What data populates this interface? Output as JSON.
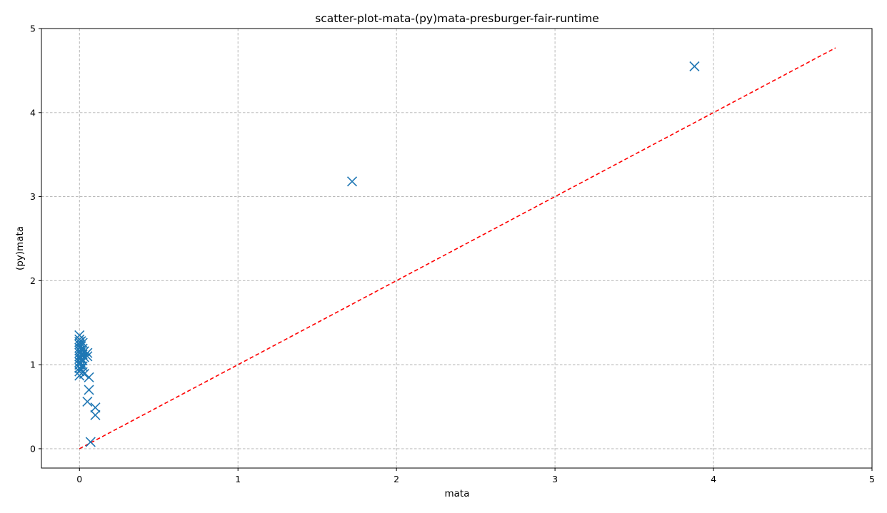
{
  "chart_data": {
    "type": "scatter",
    "title": "scatter-plot-mata-(py)mata-presburger-fair-runtime",
    "xlabel": "mata",
    "ylabel": "(py)mata",
    "xlim": [
      -0.24,
      5.0
    ],
    "ylim": [
      -0.23,
      5.0
    ],
    "xticks": [
      0,
      1,
      2,
      3,
      4,
      5
    ],
    "yticks": [
      0,
      1,
      2,
      3,
      4,
      5
    ],
    "grid": true,
    "marker": "x",
    "colors": {
      "points": "#1f77b4",
      "diagonal": "#ff0000"
    },
    "series": [
      {
        "values": [
          {
            "x": 0.0,
            "y": 1.35
          },
          {
            "x": 0.0,
            "y": 1.3
          },
          {
            "x": 0.0,
            "y": 1.27
          },
          {
            "x": 0.0,
            "y": 1.24
          },
          {
            "x": 0.0,
            "y": 1.2
          },
          {
            "x": 0.0,
            "y": 1.17
          },
          {
            "x": 0.0,
            "y": 1.14
          },
          {
            "x": 0.0,
            "y": 1.1
          },
          {
            "x": 0.0,
            "y": 1.07
          },
          {
            "x": 0.0,
            "y": 1.03
          },
          {
            "x": 0.0,
            "y": 1.0
          },
          {
            "x": 0.0,
            "y": 0.96
          },
          {
            "x": 0.0,
            "y": 0.92
          },
          {
            "x": 0.0,
            "y": 0.87
          },
          {
            "x": 0.01,
            "y": 1.28
          },
          {
            "x": 0.01,
            "y": 1.22
          },
          {
            "x": 0.01,
            "y": 1.15
          },
          {
            "x": 0.01,
            "y": 1.08
          },
          {
            "x": 0.01,
            "y": 1.02
          },
          {
            "x": 0.01,
            "y": 0.95
          },
          {
            "x": 0.02,
            "y": 1.26
          },
          {
            "x": 0.02,
            "y": 1.19
          },
          {
            "x": 0.02,
            "y": 1.12
          },
          {
            "x": 0.02,
            "y": 1.05
          },
          {
            "x": 0.02,
            "y": 0.98
          },
          {
            "x": 0.02,
            "y": 0.91
          },
          {
            "x": 0.03,
            "y": 1.16
          },
          {
            "x": 0.03,
            "y": 1.09
          },
          {
            "x": 0.03,
            "y": 0.89
          },
          {
            "x": 0.05,
            "y": 1.14
          },
          {
            "x": 0.05,
            "y": 1.1
          },
          {
            "x": 0.06,
            "y": 0.85
          },
          {
            "x": 0.06,
            "y": 0.7
          },
          {
            "x": 0.05,
            "y": 0.56
          },
          {
            "x": 0.1,
            "y": 0.49
          },
          {
            "x": 0.1,
            "y": 0.4
          },
          {
            "x": 0.07,
            "y": 0.08
          },
          {
            "x": 1.72,
            "y": 3.18
          },
          {
            "x": 3.88,
            "y": 4.55
          }
        ]
      }
    ],
    "diagonal": {
      "style": "dashed",
      "from": [
        0,
        0
      ],
      "to": [
        4.77,
        4.77
      ]
    }
  }
}
